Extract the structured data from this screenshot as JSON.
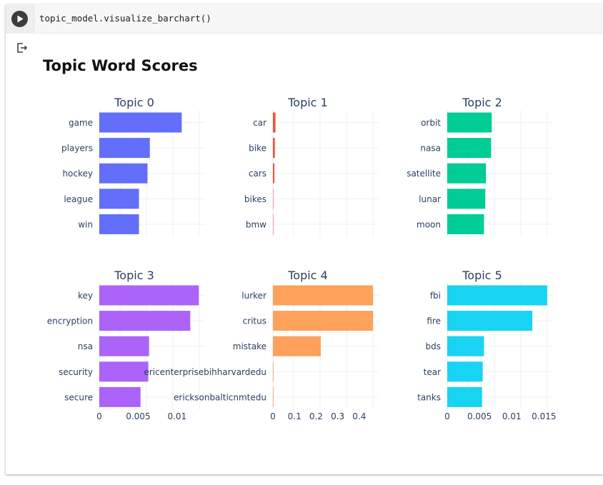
{
  "cell": {
    "code": "topic_model.visualize_barchart()",
    "run_button_icon": "play-icon",
    "output_icon": "output-redirect-icon"
  },
  "figure": {
    "title": "Topic Word Scores"
  },
  "chart_data": [
    {
      "type": "bar",
      "orientation": "horizontal",
      "title": "Topic 0",
      "color": "#636efa",
      "categories": [
        "game",
        "players",
        "hockey",
        "league",
        "win"
      ],
      "values": [
        0.0106,
        0.0065,
        0.0062,
        0.0051,
        0.0051
      ],
      "xlim": [
        0,
        0.0136
      ],
      "xticks": [],
      "xtick_labels": []
    },
    {
      "type": "bar",
      "orientation": "horizontal",
      "title": "Topic 1",
      "color": "#ef553b",
      "categories": [
        "car",
        "bike",
        "cars",
        "bikes",
        "bmw"
      ],
      "values": [
        0.012,
        0.009,
        0.007,
        0.004,
        0.004
      ],
      "xlim": [
        0,
        0.49
      ],
      "xticks": [],
      "xtick_labels": []
    },
    {
      "type": "bar",
      "orientation": "horizontal",
      "title": "Topic 2",
      "color": "#00cc96",
      "categories": [
        "orbit",
        "nasa",
        "satellite",
        "lunar",
        "moon"
      ],
      "values": [
        0.0069,
        0.0068,
        0.006,
        0.0059,
        0.0057
      ],
      "xlim": [
        0,
        0.0164
      ],
      "xticks": [],
      "xtick_labels": []
    },
    {
      "type": "bar",
      "orientation": "horizontal",
      "title": "Topic 3",
      "color": "#ab63fa",
      "categories": [
        "key",
        "encryption",
        "nsa",
        "security",
        "secure"
      ],
      "values": [
        0.0128,
        0.0117,
        0.0064,
        0.0063,
        0.0053
      ],
      "xlim": [
        0,
        0.0136
      ],
      "xticks": [
        0,
        0.005,
        0.01
      ],
      "xtick_labels": [
        "0",
        "0.005",
        "0.01"
      ]
    },
    {
      "type": "bar",
      "orientation": "horizontal",
      "title": "Topic 4",
      "color": "#ffa15a",
      "categories": [
        "lurker",
        "critus",
        "mistake",
        "ericenterprisebihharvardedu",
        "ericksonbalticnmtedu"
      ],
      "values": [
        0.464,
        0.464,
        0.222,
        0.001,
        0.001
      ],
      "xlim": [
        0,
        0.49
      ],
      "xticks": [
        0,
        0.1,
        0.2,
        0.3,
        0.4
      ],
      "xtick_labels": [
        "0",
        "0.1",
        "0.2",
        "0.3",
        "0.4"
      ]
    },
    {
      "type": "bar",
      "orientation": "horizontal",
      "title": "Topic 5",
      "color": "#19d3f3",
      "categories": [
        "fbi",
        "fire",
        "bds",
        "tear",
        "tanks"
      ],
      "values": [
        0.0155,
        0.0132,
        0.0057,
        0.0055,
        0.0054
      ],
      "xlim": [
        0,
        0.0164
      ],
      "xticks": [
        0,
        0.005,
        0.01,
        0.015
      ],
      "xtick_labels": [
        "0",
        "0.005",
        "0.01",
        "0.015"
      ]
    }
  ]
}
